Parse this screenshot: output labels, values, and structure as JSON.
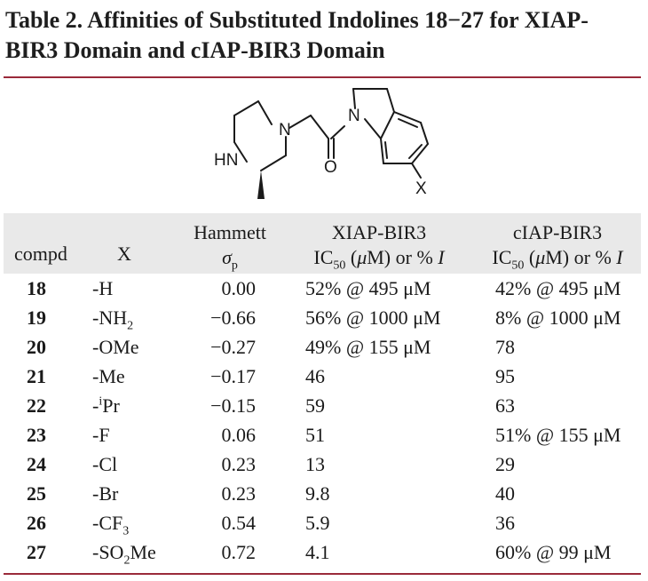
{
  "title": "Table 2. Affinities of Substituted Indolines 18−27 for XIAP-BIR3 Domain and cIAP-BIR3 Domain",
  "structure": {
    "labels": {
      "nh": "HN",
      "n_piperazine": "N",
      "n_indoline": "N",
      "o": "O",
      "x": "X"
    }
  },
  "headers": {
    "compd": "compd",
    "x": "X",
    "hammett_line1": "Hammett",
    "hammett_sigma": "σ",
    "hammett_sub": "p",
    "xiap_line1": "XIAP-BIR3",
    "xiap_ic": "IC",
    "xiap_sub": "50",
    "xiap_mid": " (",
    "xiap_mu": "μ",
    "xiap_tail": "M) or % ",
    "xiap_i": "I",
    "ciap_line1": "cIAP-BIR3",
    "ciap_ic": "IC",
    "ciap_sub": "50",
    "ciap_mid": " (",
    "ciap_mu": "μ",
    "ciap_tail": "M) or % ",
    "ciap_i": "I"
  },
  "rows": [
    {
      "compd": "18",
      "x_pre": "-H",
      "x_sub": "",
      "x_sup": "",
      "x_post": "",
      "hammett": "0.00",
      "xiap": "52% @ 495 μM",
      "ciap": "42% @ 495 μM"
    },
    {
      "compd": "19",
      "x_pre": "-NH",
      "x_sub": "2",
      "x_sup": "",
      "x_post": "",
      "hammett": "−0.66",
      "xiap": "56% @ 1000 μM",
      "ciap": "8% @ 1000 μM"
    },
    {
      "compd": "20",
      "x_pre": "-OMe",
      "x_sub": "",
      "x_sup": "",
      "x_post": "",
      "hammett": "−0.27",
      "xiap": "49% @ 155 μM",
      "ciap": "78"
    },
    {
      "compd": "21",
      "x_pre": "-Me",
      "x_sub": "",
      "x_sup": "",
      "x_post": "",
      "hammett": "−0.17",
      "xiap": "46",
      "ciap": "95"
    },
    {
      "compd": "22",
      "x_pre": "-",
      "x_sub": "",
      "x_sup": "i",
      "x_post": "Pr",
      "hammett": "−0.15",
      "xiap": "59",
      "ciap": "63"
    },
    {
      "compd": "23",
      "x_pre": "-F",
      "x_sub": "",
      "x_sup": "",
      "x_post": "",
      "hammett": "0.06",
      "xiap": "51",
      "ciap": "51% @ 155 μM"
    },
    {
      "compd": "24",
      "x_pre": "-Cl",
      "x_sub": "",
      "x_sup": "",
      "x_post": "",
      "hammett": "0.23",
      "xiap": "13",
      "ciap": "29"
    },
    {
      "compd": "25",
      "x_pre": "-Br",
      "x_sub": "",
      "x_sup": "",
      "x_post": "",
      "hammett": "0.23",
      "xiap": "9.8",
      "ciap": "40"
    },
    {
      "compd": "26",
      "x_pre": "-CF",
      "x_sub": "3",
      "x_sup": "",
      "x_post": "",
      "hammett": "0.54",
      "xiap": "5.9",
      "ciap": "36"
    },
    {
      "compd": "27",
      "x_pre": "-SO",
      "x_sub": "2",
      "x_sup": "",
      "x_post": "Me",
      "hammett": "0.72",
      "xiap": "4.1",
      "ciap": "60% @ 99 μM"
    }
  ]
}
